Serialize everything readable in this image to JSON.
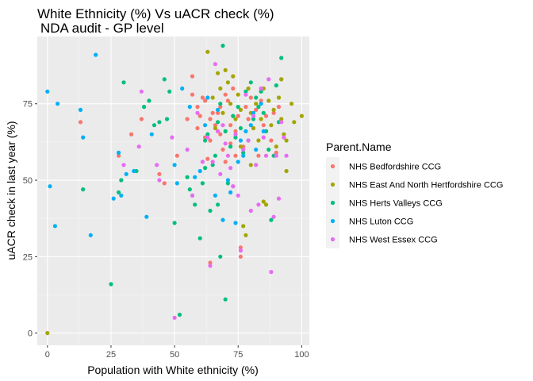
{
  "chart_data": {
    "type": "scatter",
    "title": "White Ethnicity (%) Vs uACR check (%)",
    "subtitle": "NDA audit - GP level",
    "xlabel": "Population with White ethnicity (%)",
    "ylabel": "uACR check in last year (%)",
    "xlim": [
      -4,
      103
    ],
    "ylim": [
      -4,
      97
    ],
    "x_ticks": [
      0,
      25,
      50,
      75,
      100
    ],
    "y_ticks": [
      0,
      25,
      50,
      75
    ],
    "grid": true,
    "legend": {
      "title": "Parent.Name",
      "position": "right"
    },
    "series": [
      {
        "name": "NHS Bedfordshire CCG",
        "color": "#F8766D",
        "points": [
          [
            13,
            69
          ],
          [
            28,
            58
          ],
          [
            33,
            65
          ],
          [
            37,
            70
          ],
          [
            44,
            52
          ],
          [
            46,
            49
          ],
          [
            51,
            58
          ],
          [
            55,
            70
          ],
          [
            57,
            84
          ],
          [
            57,
            78
          ],
          [
            59,
            74
          ],
          [
            59,
            67
          ],
          [
            60,
            71
          ],
          [
            61,
            77
          ],
          [
            62,
            76
          ],
          [
            62,
            64
          ],
          [
            63,
            57
          ],
          [
            64,
            70
          ],
          [
            64,
            63
          ],
          [
            64,
            23
          ],
          [
            65,
            72
          ],
          [
            66,
            68
          ],
          [
            67,
            72
          ],
          [
            67,
            66
          ],
          [
            68,
            74
          ],
          [
            68,
            65
          ],
          [
            69,
            60
          ],
          [
            70,
            78
          ],
          [
            70,
            56
          ],
          [
            71,
            76
          ],
          [
            72,
            68
          ],
          [
            72,
            62
          ],
          [
            73,
            80
          ],
          [
            73,
            48
          ],
          [
            74,
            66
          ],
          [
            74,
            58
          ],
          [
            75,
            71
          ],
          [
            76,
            28
          ],
          [
            76,
            25
          ],
          [
            77,
            61
          ],
          [
            78,
            74
          ],
          [
            79,
            70
          ],
          [
            80,
            77
          ],
          [
            81,
            67
          ],
          [
            82,
            73
          ],
          [
            83,
            58
          ],
          [
            84,
            76
          ],
          [
            85,
            68
          ],
          [
            86,
            71
          ],
          [
            88,
            63
          ],
          [
            89,
            72
          ],
          [
            90,
            59
          ],
          [
            91,
            74
          ],
          [
            92,
            83
          ]
        ]
      },
      {
        "name": "NHS East And North Hertfordshire CCG",
        "color": "#A3A500",
        "points": [
          [
            0,
            0
          ],
          [
            63,
            92
          ],
          [
            65,
            77
          ],
          [
            66,
            67
          ],
          [
            67,
            85
          ],
          [
            68,
            80
          ],
          [
            69,
            72
          ],
          [
            70,
            86
          ],
          [
            71,
            82
          ],
          [
            72,
            75
          ],
          [
            73,
            84
          ],
          [
            74,
            70
          ],
          [
            75,
            78
          ],
          [
            76,
            73
          ],
          [
            76,
            61
          ],
          [
            77,
            35
          ],
          [
            78,
            32
          ],
          [
            79,
            80
          ],
          [
            80,
            72
          ],
          [
            80,
            55
          ],
          [
            81,
            67
          ],
          [
            82,
            75
          ],
          [
            83,
            63
          ],
          [
            84,
            70
          ],
          [
            85,
            80
          ],
          [
            85,
            43
          ],
          [
            86,
            42
          ],
          [
            86,
            66
          ],
          [
            87,
            76
          ],
          [
            88,
            68
          ],
          [
            89,
            73
          ],
          [
            90,
            61
          ],
          [
            91,
            77
          ],
          [
            92,
            70
          ],
          [
            92,
            83
          ],
          [
            93,
            65
          ],
          [
            94,
            63
          ],
          [
            94,
            53
          ],
          [
            96,
            75
          ],
          [
            97,
            69
          ],
          [
            100,
            71
          ]
        ]
      },
      {
        "name": "NHS Herts Valleys CCG",
        "color": "#00BF7D",
        "points": [
          [
            14,
            47
          ],
          [
            25,
            16
          ],
          [
            28,
            46
          ],
          [
            29,
            50
          ],
          [
            30,
            82
          ],
          [
            35,
            53
          ],
          [
            38,
            74
          ],
          [
            40,
            76
          ],
          [
            42,
            68
          ],
          [
            44,
            69
          ],
          [
            46,
            83
          ],
          [
            47,
            70
          ],
          [
            48,
            79
          ],
          [
            50,
            36
          ],
          [
            52,
            6
          ],
          [
            55,
            51
          ],
          [
            56,
            47
          ],
          [
            57,
            45
          ],
          [
            58,
            42
          ],
          [
            60,
            31
          ],
          [
            61,
            49
          ],
          [
            62,
            63
          ],
          [
            62,
            54
          ],
          [
            63,
            65
          ],
          [
            64,
            40
          ],
          [
            65,
            55
          ],
          [
            66,
            58
          ],
          [
            67,
            42
          ],
          [
            67,
            69
          ],
          [
            68,
            75
          ],
          [
            68,
            25
          ],
          [
            69,
            94
          ],
          [
            70,
            11
          ],
          [
            70,
            66
          ],
          [
            71,
            49
          ],
          [
            72,
            61
          ],
          [
            73,
            71
          ],
          [
            74,
            64
          ],
          [
            75,
            74
          ],
          [
            76,
            67
          ],
          [
            77,
            59
          ],
          [
            78,
            79
          ],
          [
            79,
            63
          ],
          [
            80,
            82
          ],
          [
            81,
            70
          ],
          [
            82,
            77
          ],
          [
            83,
            74
          ],
          [
            84,
            79
          ],
          [
            85,
            72
          ],
          [
            86,
            66
          ],
          [
            87,
            60
          ],
          [
            88,
            37
          ],
          [
            89,
            58
          ],
          [
            90,
            81
          ],
          [
            91,
            69
          ],
          [
            92,
            90
          ]
        ]
      },
      {
        "name": "NHS Luton CCG",
        "color": "#00B0F6",
        "points": [
          [
            0,
            79
          ],
          [
            1,
            48
          ],
          [
            3,
            35
          ],
          [
            4,
            75
          ],
          [
            13,
            73
          ],
          [
            14,
            64
          ],
          [
            17,
            32
          ],
          [
            19,
            91
          ],
          [
            26,
            44
          ],
          [
            28,
            59
          ],
          [
            29,
            45
          ],
          [
            31,
            52
          ],
          [
            34,
            53
          ],
          [
            39,
            38
          ],
          [
            41,
            65
          ],
          [
            50,
            55
          ],
          [
            51,
            49
          ],
          [
            53,
            80
          ],
          [
            56,
            74
          ],
          [
            58,
            51
          ],
          [
            60,
            53
          ],
          [
            62,
            68
          ],
          [
            63,
            77
          ],
          [
            66,
            45
          ],
          [
            67,
            73
          ],
          [
            69,
            37
          ],
          [
            71,
            50
          ],
          [
            72,
            46
          ],
          [
            74,
            36
          ],
          [
            75,
            56
          ],
          [
            76,
            63
          ],
          [
            77,
            58
          ],
          [
            78,
            66
          ],
          [
            80,
            68
          ],
          [
            81,
            72
          ],
          [
            82,
            60
          ],
          [
            84,
            75
          ],
          [
            85,
            66
          ]
        ]
      },
      {
        "name": "NHS West Essex CCG",
        "color": "#E76BF3",
        "points": [
          [
            30,
            55
          ],
          [
            36,
            61
          ],
          [
            37,
            79
          ],
          [
            43,
            55
          ],
          [
            44,
            50
          ],
          [
            49,
            64
          ],
          [
            50,
            5
          ],
          [
            55,
            60
          ],
          [
            57,
            45
          ],
          [
            59,
            72
          ],
          [
            61,
            56
          ],
          [
            63,
            64
          ],
          [
            64,
            22
          ],
          [
            65,
            56
          ],
          [
            66,
            88
          ],
          [
            67,
            66
          ],
          [
            68,
            52
          ],
          [
            69,
            68
          ],
          [
            70,
            62
          ],
          [
            71,
            58
          ],
          [
            72,
            54
          ],
          [
            73,
            48
          ],
          [
            74,
            65
          ],
          [
            75,
            45
          ],
          [
            76,
            27
          ],
          [
            77,
            60
          ],
          [
            78,
            78
          ],
          [
            79,
            63
          ],
          [
            80,
            40
          ],
          [
            81,
            71
          ],
          [
            82,
            55
          ],
          [
            83,
            42
          ],
          [
            84,
            80
          ],
          [
            85,
            64
          ],
          [
            86,
            58
          ],
          [
            87,
            83
          ],
          [
            88,
            20
          ],
          [
            89,
            38
          ],
          [
            90,
            58
          ],
          [
            91,
            44
          ],
          [
            92,
            69
          ],
          [
            93,
            64
          ],
          [
            94,
            58
          ]
        ]
      }
    ]
  }
}
